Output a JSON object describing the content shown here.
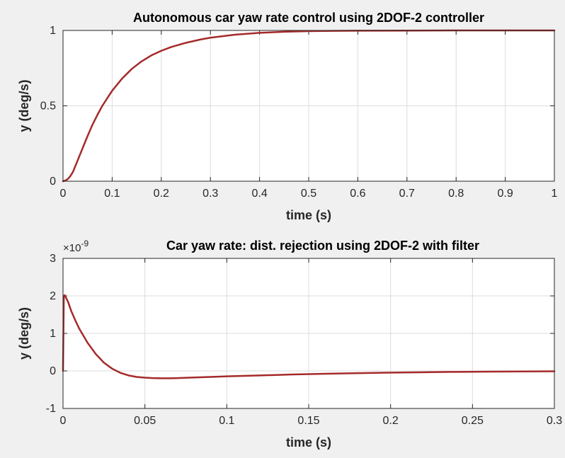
{
  "chart_data": [
    {
      "type": "line",
      "title": "Autonomous car yaw rate control using 2DOF-2 controller",
      "xlabel": "time (s)",
      "ylabel": "y (deg/s)",
      "xlim": [
        0,
        1
      ],
      "ylim": [
        0,
        1
      ],
      "xticks": [
        0,
        0.1,
        0.2,
        0.3,
        0.4,
        0.5,
        0.6,
        0.7,
        0.8,
        0.9,
        1
      ],
      "xtick_labels": [
        "0",
        "0.1",
        "0.2",
        "0.3",
        "0.4",
        "0.5",
        "0.6",
        "0.7",
        "0.8",
        "0.9",
        "1"
      ],
      "yticks": [
        0,
        0.5,
        1
      ],
      "ytick_labels": [
        "0",
        "0.5",
        "1"
      ],
      "grid": true,
      "color": "#a52a2a",
      "series": [
        {
          "x": [
            0,
            0.005,
            0.01,
            0.015,
            0.02,
            0.03,
            0.04,
            0.05,
            0.06,
            0.07,
            0.08,
            0.09,
            0.1,
            0.12,
            0.14,
            0.16,
            0.18,
            0.2,
            0.22,
            0.25,
            0.28,
            0.3,
            0.35,
            0.4,
            0.45,
            0.5,
            0.55,
            0.6,
            0.7,
            0.8,
            0.9,
            1.0
          ],
          "y": [
            0,
            0.005,
            0.015,
            0.035,
            0.06,
            0.14,
            0.22,
            0.3,
            0.375,
            0.44,
            0.5,
            0.55,
            0.6,
            0.68,
            0.745,
            0.795,
            0.835,
            0.865,
            0.89,
            0.918,
            0.94,
            0.952,
            0.972,
            0.984,
            0.991,
            0.995,
            0.997,
            0.998,
            0.999,
            1.0,
            1.0,
            1.0
          ]
        }
      ]
    },
    {
      "type": "line",
      "title": "Car yaw rate: dist. rejection using 2DOF-2 with filter",
      "xlabel": "time (s)",
      "ylabel": "y (deg/s)",
      "exponent_label": "×10",
      "exponent_power": "-9",
      "xlim": [
        0,
        0.3
      ],
      "ylim": [
        -1,
        3
      ],
      "xticks": [
        0,
        0.05,
        0.1,
        0.15,
        0.2,
        0.25,
        0.3
      ],
      "xtick_labels": [
        "0",
        "0.05",
        "0.1",
        "0.15",
        "0.2",
        "0.25",
        "0.3"
      ],
      "yticks": [
        -1,
        0,
        1,
        2,
        3
      ],
      "ytick_labels": [
        "-1",
        "0",
        "1",
        "2",
        "3"
      ],
      "grid": true,
      "color": "#a52a2a",
      "series": [
        {
          "x": [
            0,
            0.0005,
            0.001,
            0.003,
            0.005,
            0.008,
            0.01,
            0.015,
            0.02,
            0.025,
            0.03,
            0.035,
            0.04,
            0.045,
            0.05,
            0.055,
            0.06,
            0.065,
            0.07,
            0.08,
            0.09,
            0.1,
            0.12,
            0.14,
            0.16,
            0.18,
            0.2,
            0.22,
            0.24,
            0.26,
            0.28,
            0.3
          ],
          "y": [
            0,
            2.0,
            2.02,
            1.85,
            1.6,
            1.3,
            1.12,
            0.75,
            0.45,
            0.22,
            0.06,
            -0.05,
            -0.12,
            -0.16,
            -0.18,
            -0.19,
            -0.195,
            -0.195,
            -0.19,
            -0.175,
            -0.16,
            -0.145,
            -0.12,
            -0.095,
            -0.075,
            -0.06,
            -0.045,
            -0.035,
            -0.025,
            -0.02,
            -0.015,
            -0.01
          ]
        }
      ]
    }
  ]
}
